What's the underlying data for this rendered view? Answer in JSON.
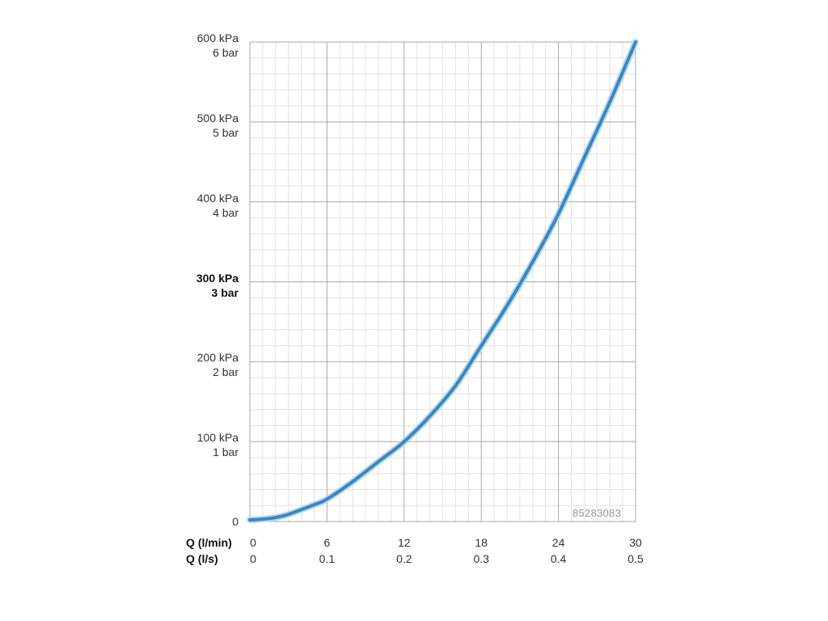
{
  "chart_data": {
    "type": "line",
    "x_axes": [
      {
        "label": "Q (l/min)",
        "ticks": [
          "0",
          "6",
          "12",
          "18",
          "24",
          "30"
        ]
      },
      {
        "label": "Q (l/s)",
        "ticks": [
          "0",
          "0.1",
          "0.2",
          "0.3",
          "0.4",
          "0.5"
        ]
      }
    ],
    "xlim": [
      0,
      30
    ],
    "ylim": [
      0,
      600
    ],
    "y_ticks": [
      {
        "value": 0,
        "lines": [
          "0"
        ],
        "bold": false
      },
      {
        "value": 100,
        "lines": [
          "100 kPa",
          "1 bar"
        ],
        "bold": false
      },
      {
        "value": 200,
        "lines": [
          "200 kPa",
          "2 bar"
        ],
        "bold": false
      },
      {
        "value": 300,
        "lines": [
          "300 kPa",
          "3 bar"
        ],
        "bold": true
      },
      {
        "value": 400,
        "lines": [
          "400 kPa",
          "4 bar"
        ],
        "bold": false
      },
      {
        "value": 500,
        "lines": [
          "500 kPa",
          "5 bar"
        ],
        "bold": false
      },
      {
        "value": 600,
        "lines": [
          "600 kPa",
          "6 bar"
        ],
        "bold": false
      }
    ],
    "grid": true,
    "series": [
      {
        "color": "#3a87c0",
        "x": [
          0,
          1,
          2,
          3,
          4,
          5,
          6,
          8,
          10,
          12,
          14,
          16,
          18,
          20,
          22,
          24,
          26,
          28,
          30
        ],
        "y": [
          2,
          3,
          5,
          9,
          15,
          21,
          28,
          50,
          75,
          100,
          132,
          170,
          220,
          270,
          325,
          385,
          455,
          525,
          600
        ]
      }
    ],
    "watermark": "85283083"
  }
}
